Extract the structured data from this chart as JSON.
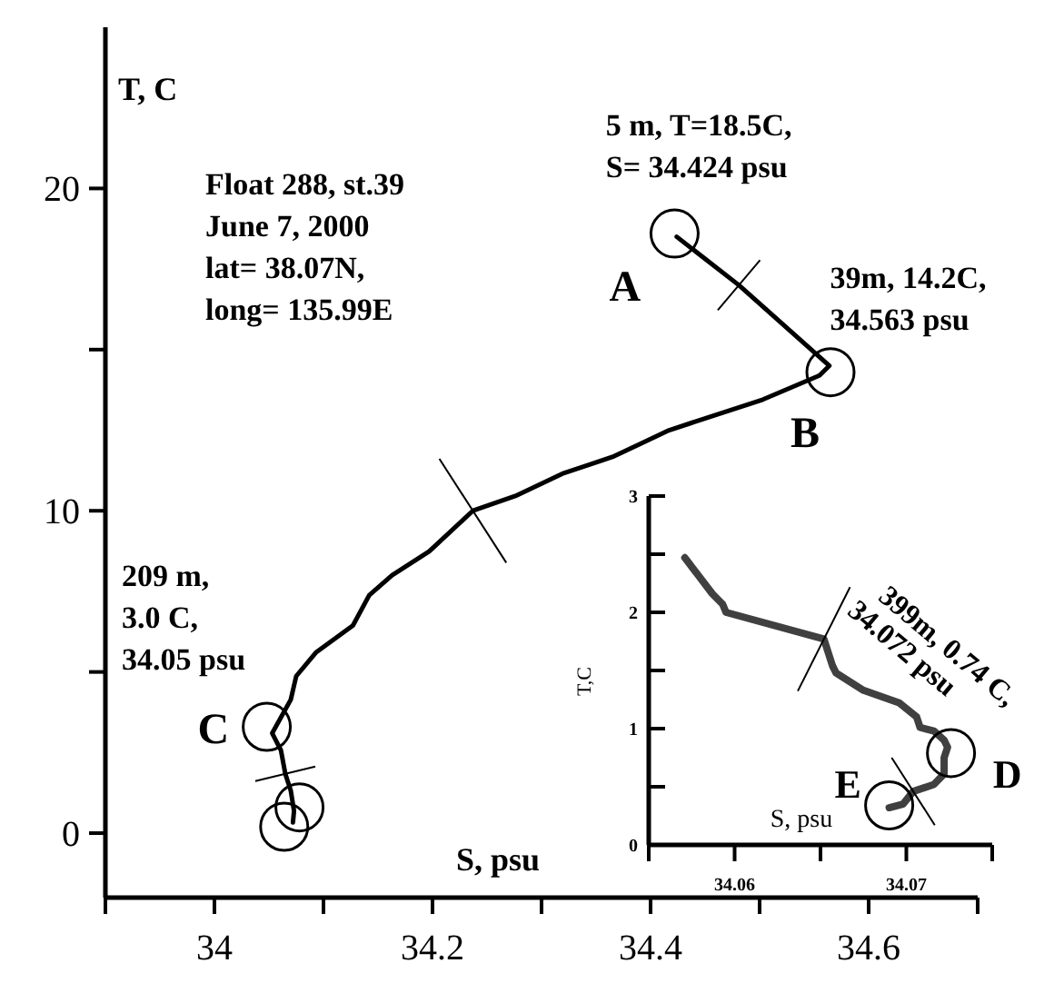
{
  "chart_data": [
    {
      "type": "line",
      "xlabel": "S, psu",
      "ylabel": "T, C",
      "xlim": [
        33.9,
        34.7
      ],
      "ylim": [
        -2,
        25
      ],
      "xticks": [
        {
          "value": 33.9,
          "label": null
        },
        34,
        {
          "value": 34.1,
          "label": null
        },
        34.2,
        {
          "value": 34.3,
          "label": null
        },
        34.4,
        {
          "value": 34.5,
          "label": null
        },
        34.6,
        {
          "value": 34.7,
          "label": null
        }
      ],
      "yticks": [
        0,
        {
          "value": 5,
          "label": null
        },
        10,
        {
          "value": 15,
          "label": null
        },
        20
      ],
      "series": [
        {
          "color": "#000000",
          "x": [
            34.424,
            34.481,
            34.564,
            34.555,
            34.503,
            34.417,
            34.392,
            34.365,
            34.319,
            34.276,
            34.237,
            34.197,
            34.163,
            34.142,
            34.127,
            34.093,
            34.075,
            34.07,
            34.053,
            34.061,
            34.065,
            34.07,
            34.073,
            34.072
          ],
          "values": [
            18.5,
            17.0,
            14.5,
            14.2,
            13.45,
            12.5,
            12.1,
            11.67,
            11.15,
            10.46,
            10.0,
            8.74,
            8.0,
            7.38,
            6.44,
            5.6,
            4.87,
            4.14,
            3.1,
            2.57,
            1.84,
            1.32,
            0.69,
            0.33
          ]
        },
        {
          "type": "scatter",
          "marker": "circle",
          "color": "#000000",
          "x": [
            34.422,
            34.565,
            34.048,
            34.078,
            34.064
          ],
          "values": [
            18.6,
            14.3,
            3.3,
            0.8,
            0.2
          ]
        }
      ],
      "annotations": [
        "Float 288, st.39\nJune 7, 2000\nlat= 38.07N,\nlong= 135.99E",
        {
          "text": "5 m, T=18.5C,\nS= 34.424 psu",
          "x": 34.424,
          "y": 18.5
        },
        {
          "text": "39m, 14.2C,\n34.563 psu",
          "x": 34.563,
          "y": 14.2
        },
        {
          "text": "209 m,\n3.0 C,\n34.05 psu",
          "x": 34.05,
          "y": 3.0
        },
        {
          "text": "A",
          "x": 34.422,
          "y": 18.6
        },
        {
          "text": "B",
          "x": 34.565,
          "y": 14.3
        },
        {
          "text": "C",
          "x": 34.048,
          "y": 3.3
        }
      ]
    },
    {
      "type": "line",
      "xlabel": "S, psu",
      "ylabel": "T,C",
      "xlim": [
        34.055,
        34.075
      ],
      "ylim": [
        0,
        3
      ],
      "xticks": [
        {
          "value": 34.055,
          "label": null
        },
        34.06,
        {
          "value": 34.065,
          "label": null
        },
        34.07,
        {
          "value": 34.075,
          "label": null
        }
      ],
      "yticks": [
        0,
        {
          "value": 0.5,
          "label": null
        },
        1,
        {
          "value": 1.5,
          "label": null
        },
        2,
        {
          "value": 2.5,
          "label": null
        },
        3
      ],
      "series": [
        {
          "color": "#404040",
          "x": [
            34.0571,
            34.0587,
            34.0593,
            34.0595,
            34.0652,
            34.0657,
            34.0659,
            34.0675,
            34.0696,
            34.0706,
            34.0708,
            34.0716,
            34.0722,
            34.0724,
            34.0722,
            34.0722,
            34.0716,
            34.0704,
            34.0698,
            34.069
          ],
          "values": [
            2.47,
            2.16,
            2.07,
            2.0,
            1.77,
            1.54,
            1.48,
            1.33,
            1.22,
            1.1,
            1.01,
            0.98,
            0.9,
            0.84,
            0.75,
            0.61,
            0.52,
            0.46,
            0.35,
            0.32
          ]
        },
        {
          "type": "scatter",
          "marker": "circle",
          "color": "#000000",
          "x": [
            34.0726,
            34.069
          ],
          "values": [
            0.79,
            0.34
          ]
        }
      ],
      "annotations": [
        {
          "text": "399m, 0.74 C,\n34.072 psu",
          "x": 34.072,
          "y": 0.74
        },
        {
          "text": "D",
          "x": 34.0726,
          "y": 0.79
        },
        {
          "text": "E",
          "x": 34.069,
          "y": 0.34
        }
      ]
    }
  ]
}
